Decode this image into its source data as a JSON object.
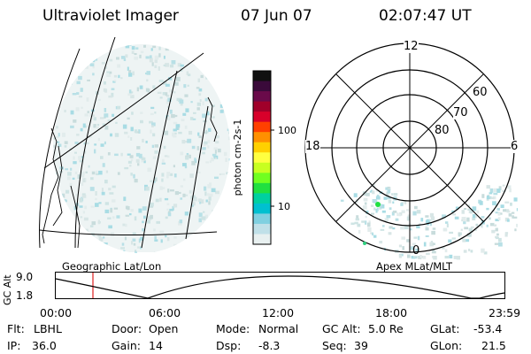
{
  "header": {
    "instrument": "Ultraviolet Imager",
    "date": "07 Jun 07",
    "time": "02:07:47 UT"
  },
  "colorbar": {
    "unit_label": "photon cm-2s-1",
    "tick_labels": [
      "100",
      "10"
    ],
    "colors": [
      "#101010",
      "#3a0a3a",
      "#6a0a4a",
      "#a0002a",
      "#d8002a",
      "#ff4000",
      "#ff9000",
      "#ffd000",
      "#ffff40",
      "#c8ff20",
      "#70ff20",
      "#20e040",
      "#00d0a0",
      "#00c0d0",
      "#80d0e0",
      "#c0e0e8",
      "#e8f0f0"
    ]
  },
  "polar_map": {
    "mlt_labels": [
      "12",
      "18",
      "6",
      "0"
    ],
    "lat_labels": [
      "60",
      "70",
      "80"
    ]
  },
  "map_labels": {
    "left": "Geographic Lat/Lon",
    "right": "Apex MLat/MLT"
  },
  "altitude_plot": {
    "axis_label": "GC Alt",
    "y_ticks": [
      "9.0",
      "1.8"
    ],
    "x_ticks": [
      "00:00",
      "06:00",
      "12:00",
      "18:00",
      "23:59"
    ],
    "marker_color": "#e03030"
  },
  "status": {
    "flt": {
      "label": "Flt:",
      "value": "LBHL"
    },
    "door": {
      "label": "Door:",
      "value": "Open"
    },
    "mode": {
      "label": "Mode:",
      "value": "Normal"
    },
    "gcalt": {
      "label": "GC Alt:",
      "value": "5.0 Re"
    },
    "glat": {
      "label": "GLat:",
      "value": "-53.4"
    },
    "ip": {
      "label": "IP:",
      "value": "36.0"
    },
    "gain": {
      "label": "Gain:",
      "value": "14"
    },
    "dsp": {
      "label": "Dsp:",
      "value": "-8.3"
    },
    "seq": {
      "label": "Seq:",
      "value": "39"
    },
    "glon": {
      "label": "GLon:",
      "value": "21.5"
    }
  }
}
